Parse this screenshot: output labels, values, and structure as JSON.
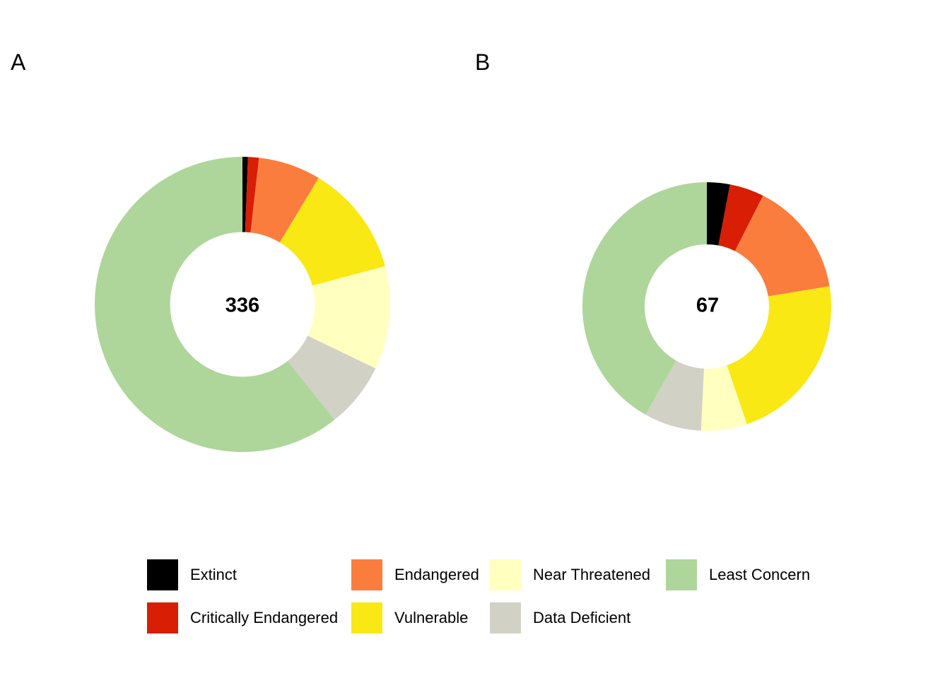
{
  "page": {
    "background": "#FFFFFF"
  },
  "panels": [
    {
      "label": "A"
    },
    {
      "label": "B"
    }
  ],
  "chart_data": [
    {
      "type": "pie",
      "subtype": "donut",
      "panel_label": "A",
      "title": "",
      "center_label": "336",
      "total": 336,
      "categories": [
        "Extinct",
        "Critically Endangered",
        "Endangered",
        "Vulnerable",
        "Near Threatened",
        "Data Deficient",
        "Least Concern"
      ],
      "values": [
        2,
        4,
        23,
        41,
        38,
        24,
        204
      ],
      "colors": [
        "#000000",
        "#D81E05",
        "#FA7D3E",
        "#F9E814",
        "#FFFFBF",
        "#D1D1C6",
        "#AED69A"
      ],
      "start_angle_deg": 0,
      "direction": "clockwise",
      "inner_radius_ratio": 0.49,
      "legend_position": "bottom"
    },
    {
      "type": "pie",
      "subtype": "donut",
      "panel_label": "B",
      "title": "",
      "center_label": "67",
      "total": 67,
      "categories": [
        "Extinct",
        "Critically Endangered",
        "Endangered",
        "Vulnerable",
        "Near Threatened",
        "Data Deficient",
        "Least Concern"
      ],
      "values": [
        2,
        3,
        10,
        15,
        4,
        5,
        28
      ],
      "colors": [
        "#000000",
        "#D81E05",
        "#FA7D3E",
        "#F9E814",
        "#FFFFBF",
        "#D1D1C6",
        "#AED69A"
      ],
      "start_angle_deg": 0,
      "direction": "clockwise",
      "inner_radius_ratio": 0.5,
      "legend_position": "bottom"
    }
  ],
  "legend": {
    "columns": [
      {
        "items": [
          {
            "label": "Extinct",
            "color": "#000000"
          },
          {
            "label": "Critically Endangered",
            "color": "#D81E05"
          }
        ]
      },
      {
        "items": [
          {
            "label": "Endangered",
            "color": "#FA7D3E"
          },
          {
            "label": "Vulnerable",
            "color": "#F9E814"
          }
        ]
      },
      {
        "items": [
          {
            "label": "Near Threatened",
            "color": "#FFFFBF"
          },
          {
            "label": "Data Deficient",
            "color": "#D1D1C6"
          }
        ]
      },
      {
        "items": [
          {
            "label": "Least Concern",
            "color": "#AED69A"
          }
        ]
      }
    ]
  }
}
